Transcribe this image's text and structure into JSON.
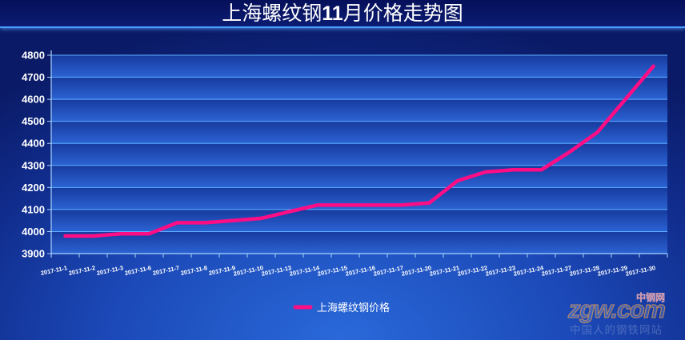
{
  "colors": {
    "line": "#ff0d85",
    "grid": "#5eaeff",
    "axis": "#a9d4ff",
    "text": "#ffffff"
  },
  "chart_data": {
    "type": "line",
    "title": "上海螺纹钢11月价格走势图",
    "categories": [
      "2017-11-1",
      "2017-11-2",
      "2017-11-3",
      "2017-11-6",
      "2017-11-7",
      "2017-11-8",
      "2017-11-9",
      "2017-11-10",
      "2017-11-13",
      "2017-11-14",
      "2017-11-15",
      "2017-11-16",
      "2017-11-17",
      "2017-11-20",
      "2017-11-21",
      "2017-11-22",
      "2017-11-23",
      "2017-11-24",
      "2017-11-27",
      "2017-11-28",
      "2017-11-29",
      "2017-11-30"
    ],
    "series": [
      {
        "name": "上海螺纹钢价格",
        "values": [
          3980,
          3980,
          3990,
          3990,
          4040,
          4040,
          4050,
          4060,
          4090,
          4120,
          4120,
          4120,
          4120,
          4130,
          4230,
          4270,
          4280,
          4280,
          4360,
          4450,
          4600,
          4750
        ]
      }
    ],
    "ylim": [
      3900,
      4800
    ],
    "yticks": [
      3900,
      4000,
      4100,
      4200,
      4300,
      4400,
      4500,
      4600,
      4700,
      4800
    ],
    "grid": true,
    "legend": "bottom"
  },
  "logo": {
    "name": "zgw.com",
    "badge": "中钢网",
    "tagline": "中国人的钢铁网站"
  }
}
